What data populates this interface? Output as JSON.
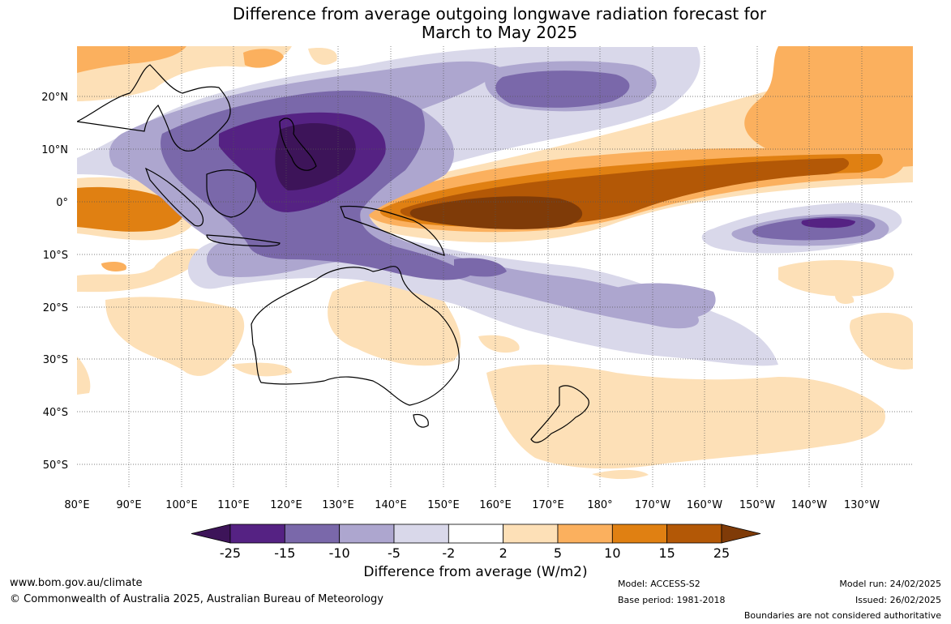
{
  "title": {
    "line1": "Difference from average outgoing longwave radiation forecast for",
    "line2": "March to May 2025"
  },
  "map": {
    "lat_labels": [
      "20°N",
      "10°N",
      "0°",
      "10°S",
      "20°S",
      "30°S",
      "40°S",
      "50°S"
    ],
    "lon_labels": [
      "80°E",
      "90°E",
      "100°E",
      "110°E",
      "120°E",
      "130°E",
      "140°E",
      "150°E",
      "160°E",
      "170°E",
      "180°",
      "170°W",
      "160°W",
      "150°W",
      "140°W",
      "130°W"
    ],
    "gridlines": true
  },
  "colorbar": {
    "title": "Difference from average (W/m2)",
    "tick_labels": [
      "-25",
      "-15",
      "-10",
      "-5",
      "-2",
      "2",
      "5",
      "10",
      "15",
      "25"
    ],
    "colors": [
      "#3d1459",
      "#552283",
      "#7a68aa",
      "#ada6cf",
      "#d9d8ea",
      "#ffffff",
      "#fde0b7",
      "#fbb05e",
      "#e08012",
      "#b35806",
      "#7f3b08"
    ]
  },
  "footer": {
    "website": "www.bom.gov.au/climate",
    "copyright": "© Commonwealth of Australia 2025, Australian Bureau of Meteorology",
    "model": "Model: ACCESS-S2",
    "base_period": "Base period: 1981-2018",
    "model_run": "Model run: 24/02/2025",
    "issued": "Issued: 26/02/2025",
    "disclaimer": "Boundaries are not considered authoritative"
  }
}
